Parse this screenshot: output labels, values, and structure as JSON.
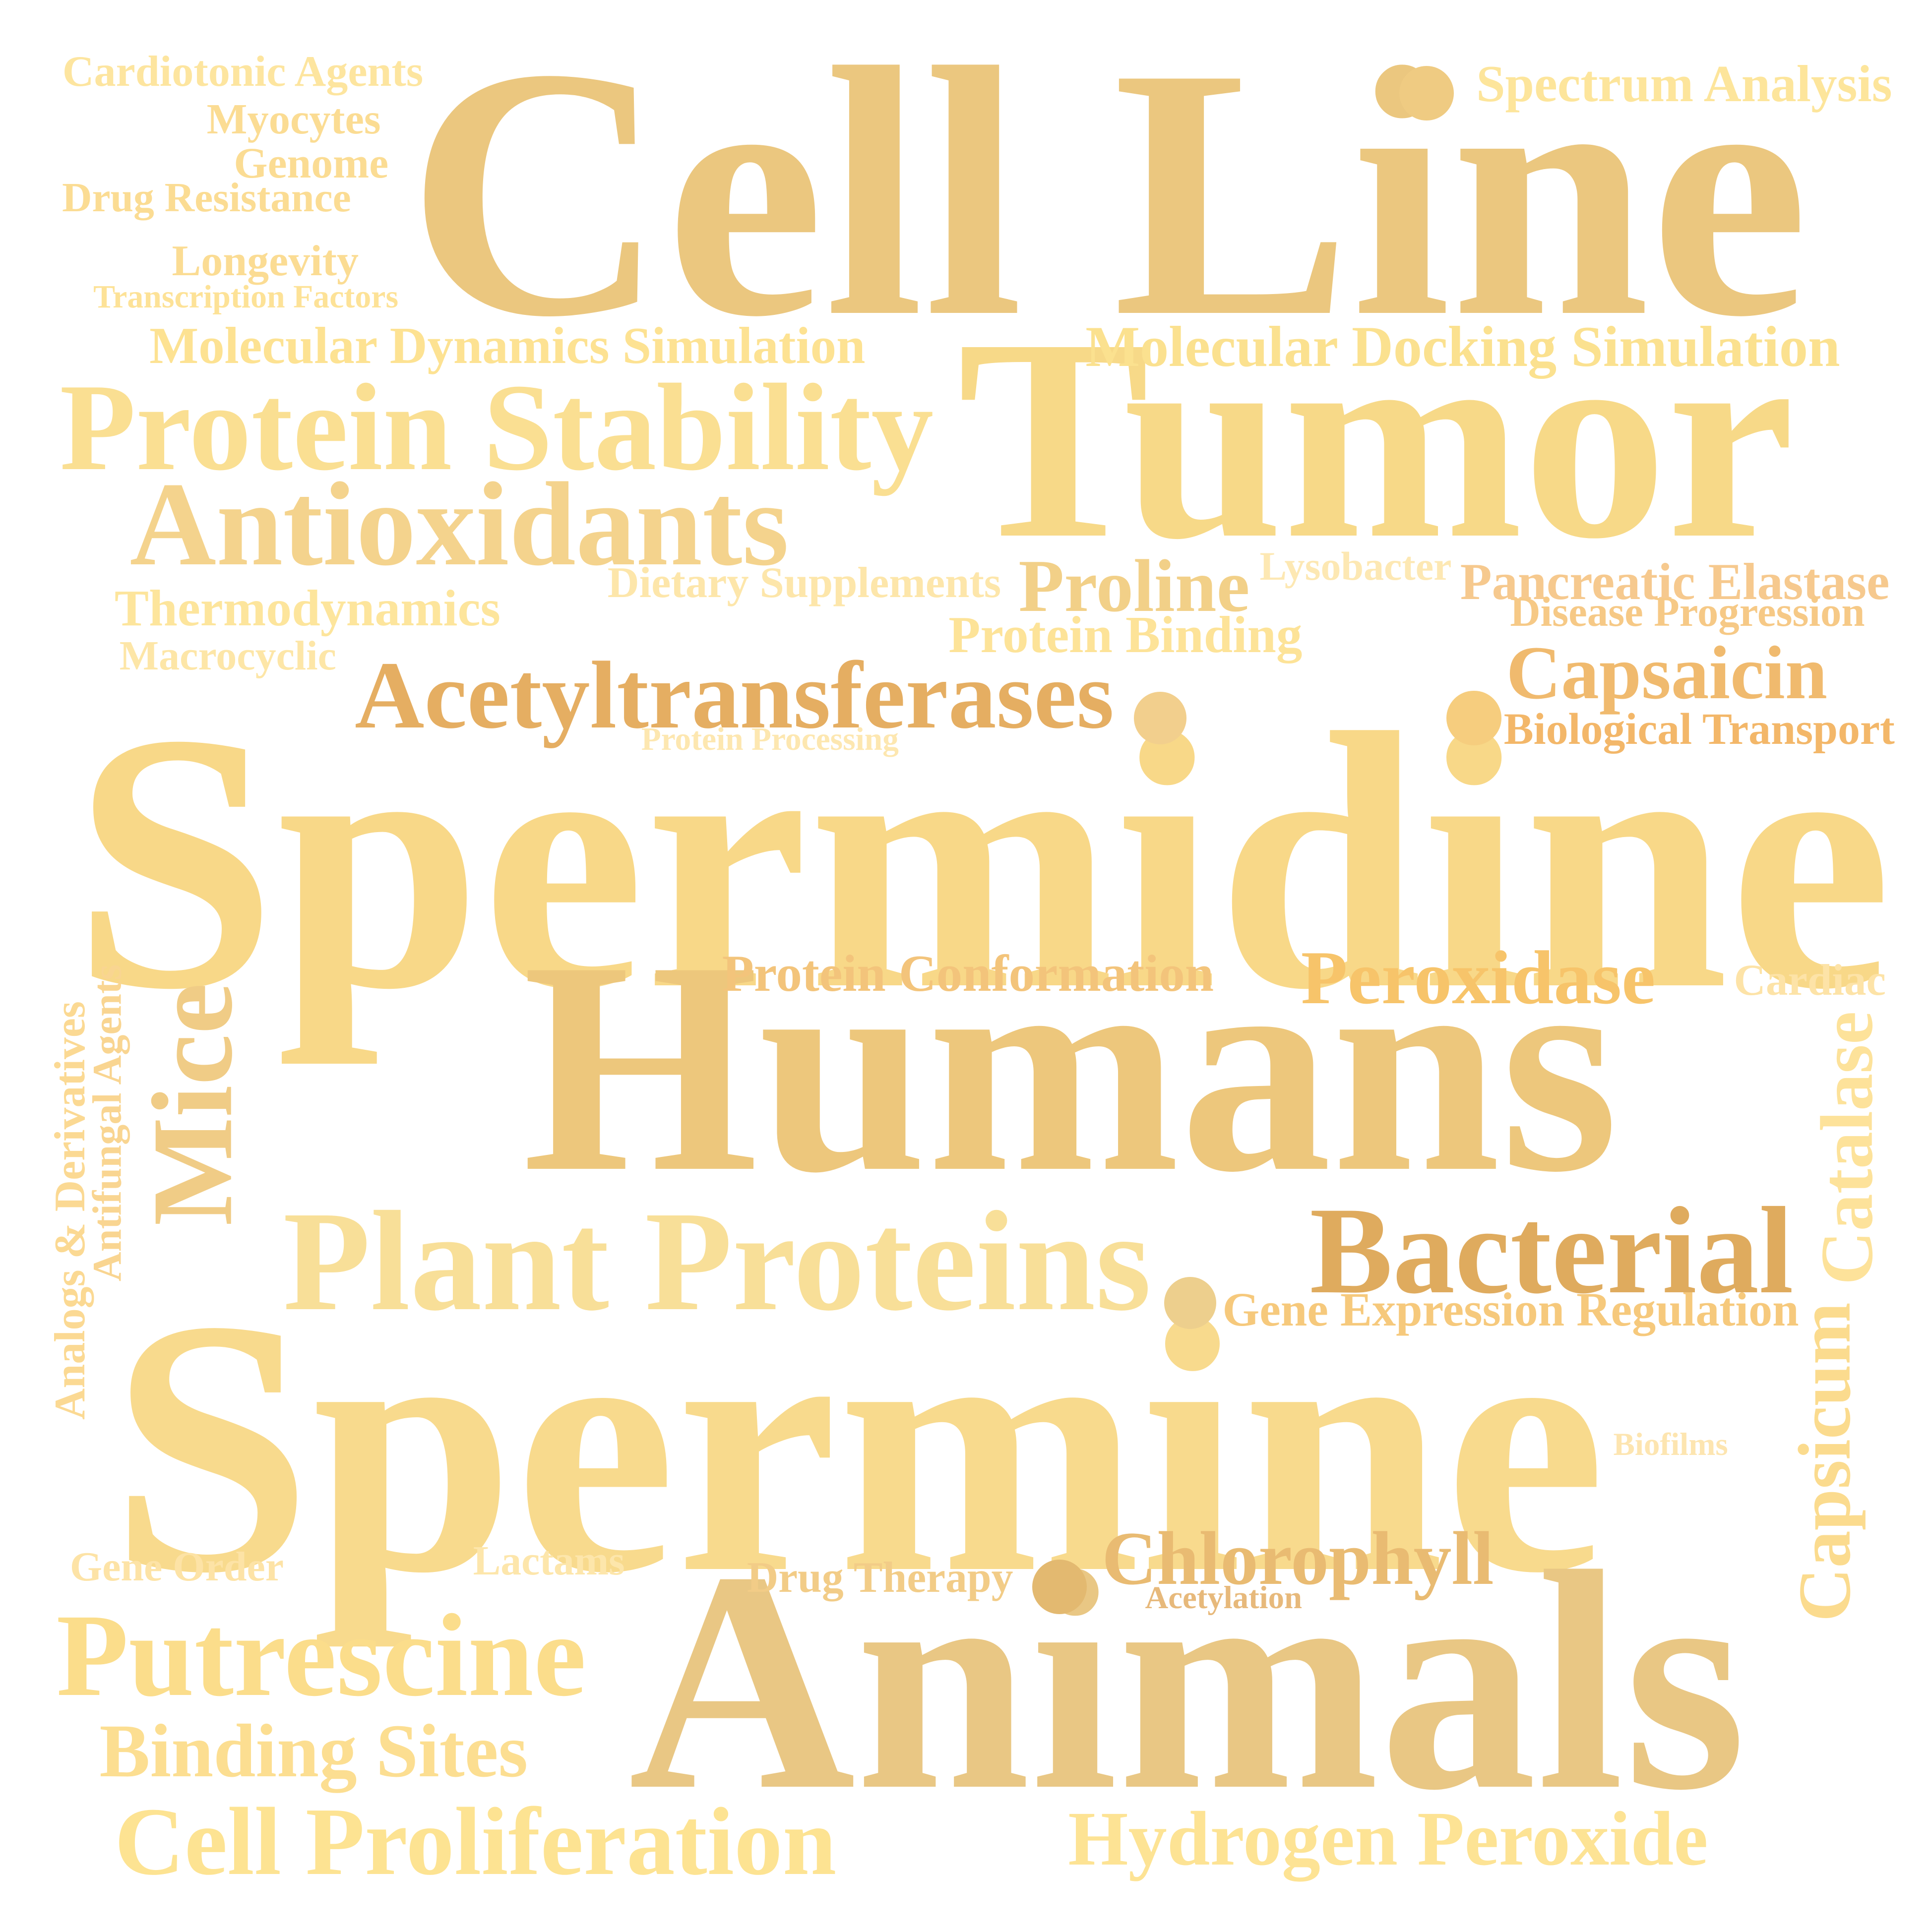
{
  "cloud": {
    "words": [
      {
        "text": "Cell Line",
        "color": "#ebc77f"
      },
      {
        "text": "Tumor",
        "color": "#f7d988"
      },
      {
        "text": "Spermidine",
        "color": "#f8d888"
      },
      {
        "text": "Humans",
        "color": "#edc77c"
      },
      {
        "text": "Spermine",
        "color": "#f8da8d"
      },
      {
        "text": "Animals",
        "color": "#e9c784"
      },
      {
        "text": "Plant Proteins",
        "color": "#f8df98"
      },
      {
        "text": "Bacterial",
        "color": "#dfab5e"
      },
      {
        "text": "Protein Stability",
        "color": "#fadf92"
      },
      {
        "text": "Antioxidants",
        "color": "#f4d38d"
      },
      {
        "text": "Acetyltransferases",
        "color": "#e5ae62"
      },
      {
        "text": "Putrescine",
        "color": "#fbdd8b"
      },
      {
        "text": "Cell Proliferation",
        "color": "#fde392"
      },
      {
        "text": "Hydrogen Peroxide",
        "color": "#fde394"
      },
      {
        "text": "Binding Sites",
        "color": "#fcde91"
      },
      {
        "text": "Chlorophyll",
        "color": "#e9bb72"
      },
      {
        "text": "Mice",
        "color": "#f0cc86"
      },
      {
        "text": "Peroxidase",
        "color": "#f7c46a"
      },
      {
        "text": "Capsaicin",
        "color": "#f0ba6e"
      },
      {
        "text": "Proline",
        "color": "#f2d088"
      },
      {
        "text": "Molecular Docking Simulation",
        "color": "#fbe18f"
      },
      {
        "text": "Molecular Dynamics Simulation",
        "color": "#fde292"
      },
      {
        "text": "Protein Conformation",
        "color": "#f3c47b"
      },
      {
        "text": "Gene Expression Regulation",
        "color": "#f6c97c"
      },
      {
        "text": "Pancreatic Elastase",
        "color": "#f6c98e"
      },
      {
        "text": "Spectrum Analysis",
        "color": "#fde59b"
      },
      {
        "text": "Catalase",
        "color": "#fde29a"
      },
      {
        "text": "Capsicum",
        "color": "#fbdb8e"
      },
      {
        "text": "Protein Binding",
        "color": "#fde398"
      },
      {
        "text": "Thermodynamics",
        "color": "#fde59c"
      },
      {
        "text": "Dietary Supplements",
        "color": "#fde6aa"
      },
      {
        "text": "Biological Transport",
        "color": "#f3b769"
      },
      {
        "text": "Disease Progression",
        "color": "#f6c986"
      },
      {
        "text": "Cardiotonic Agents",
        "color": "#fde59f"
      },
      {
        "text": "Myocytes",
        "color": "#fbdc93"
      },
      {
        "text": "Genome",
        "color": "#fbdc93"
      },
      {
        "text": "Drug Resistance",
        "color": "#fbdc93"
      },
      {
        "text": "Longevity",
        "color": "#fbdc93"
      },
      {
        "text": "Transcription Factors",
        "color": "#fde297"
      },
      {
        "text": "Macrocyclic",
        "color": "#fde6a7"
      },
      {
        "text": "Lysobacter",
        "color": "#fde8b3"
      },
      {
        "text": "Protein Processing",
        "color": "#fde7b0"
      },
      {
        "text": "Cardiac",
        "color": "#fde3a7"
      },
      {
        "text": "Analogs & Derivatives",
        "color": "#fbd993"
      },
      {
        "text": "Antifungal Agents",
        "color": "#f9d591"
      },
      {
        "text": "Drug Therapy",
        "color": "#f2cc87"
      },
      {
        "text": "Acetylation",
        "color": "#e7b97b"
      },
      {
        "text": "Lactams",
        "color": "#fde6ab"
      },
      {
        "text": "Gene Order",
        "color": "#fde3a6"
      },
      {
        "text": "Biofilms",
        "color": "#fde5b0"
      }
    ],
    "dots": [
      {
        "color": "#f2cf8d"
      },
      {
        "color": "#f6cd7e"
      },
      {
        "color": "#efcb82"
      },
      {
        "color": "#edcf8d"
      },
      {
        "color": "#e3b970"
      }
    ]
  }
}
